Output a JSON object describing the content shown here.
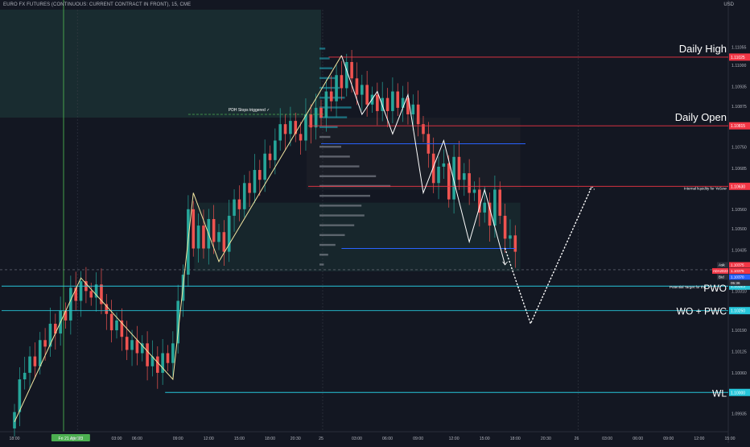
{
  "header": {
    "symbol_title": "EURO FX FUTURES (CONTINUOUS: CURRENT CONTRACT IN FRONT), 15, CME",
    "currency": "USD"
  },
  "chart_data": {
    "type": "candlestick",
    "ylim": [
      1.0988,
      1.1117
    ],
    "price_ticks": [
      {
        "value": 1.11055,
        "label": "1.11055"
      },
      {
        "value": 1.11,
        "label": "1.11000"
      },
      {
        "value": 1.10935,
        "label": "1.10935"
      },
      {
        "value": 1.10875,
        "label": "1.10875"
      },
      {
        "value": 1.10815,
        "label": "1.10815"
      },
      {
        "value": 1.1075,
        "label": "1.10750"
      },
      {
        "value": 1.10685,
        "label": "1.10685"
      },
      {
        "value": 1.1063,
        "label": "1.10630"
      },
      {
        "value": 1.1056,
        "label": "1.10560"
      },
      {
        "value": 1.105,
        "label": "1.10500"
      },
      {
        "value": 1.10435,
        "label": "1.10435"
      },
      {
        "value": 1.10375,
        "label": "1.10375"
      },
      {
        "value": 1.1031,
        "label": "1.10310"
      },
      {
        "value": 1.1025,
        "label": "1.10250"
      },
      {
        "value": 1.1019,
        "label": "1.10190"
      },
      {
        "value": 1.10125,
        "label": "1.10125"
      },
      {
        "value": 1.1006,
        "label": "1.10060"
      },
      {
        "value": 1.1,
        "label": "1.10000"
      },
      {
        "value": 1.09935,
        "label": "1.09935"
      }
    ],
    "time_ticks": [
      {
        "i": 0,
        "label": "18:00"
      },
      {
        "i": 11,
        "label": "Fri 21 Apr '23"
      },
      {
        "i": 12,
        "label": "22:00"
      },
      {
        "i": 20,
        "label": "03:00"
      },
      {
        "i": 24,
        "label": "06:00"
      },
      {
        "i": 32,
        "label": "09:00"
      },
      {
        "i": 38,
        "label": "12:00"
      },
      {
        "i": 44,
        "label": "15:00"
      },
      {
        "i": 50,
        "label": "18:00"
      },
      {
        "i": 55,
        "label": "20:30"
      },
      {
        "i": 60,
        "label": "25"
      },
      {
        "i": 67,
        "label": "03:00"
      },
      {
        "i": 73,
        "label": "06:00"
      },
      {
        "i": 79,
        "label": "09:00"
      },
      {
        "i": 86,
        "label": "12:00"
      },
      {
        "i": 92,
        "label": "15:00"
      },
      {
        "i": 98,
        "label": "18:00"
      },
      {
        "i": 104,
        "label": "20:30"
      },
      {
        "i": 110,
        "label": "26"
      },
      {
        "i": 116,
        "label": "03:00"
      },
      {
        "i": 122,
        "label": "06:00"
      },
      {
        "i": 128,
        "label": "09:00"
      },
      {
        "i": 134,
        "label": "12:00"
      },
      {
        "i": 140,
        "label": "15:00"
      }
    ],
    "candles_close": [
      1.0994,
      1.1004,
      1.1006,
      1.1011,
      1.1008,
      1.1016,
      1.1014,
      1.1021,
      1.1018,
      1.1025,
      1.1022,
      1.1032,
      1.1028,
      1.1034,
      1.1031,
      1.1029,
      1.1033,
      1.1027,
      1.1024,
      1.1019,
      1.1022,
      1.1017,
      1.1013,
      1.1016,
      1.1012,
      1.1015,
      1.1008,
      1.1011,
      1.1006,
      1.1012,
      1.1009,
      1.1015,
      1.1028,
      1.1036,
      1.1056,
      1.1044,
      1.1051,
      1.1044,
      1.1053,
      1.1046,
      1.1049,
      1.1043,
      1.1054,
      1.1059,
      1.1056,
      1.1064,
      1.1061,
      1.1068,
      1.1065,
      1.1073,
      1.1071,
      1.1077,
      1.1082,
      1.1079,
      1.1083,
      1.1079,
      1.1077,
      1.1085,
      1.1081,
      1.1087,
      1.1084,
      1.1092,
      1.1089,
      1.1097,
      1.1093,
      1.1101,
      1.1096,
      1.1091,
      1.1094,
      1.1088,
      1.1091,
      1.1086,
      1.109,
      1.1086,
      1.1092,
      1.1087,
      1.109,
      1.1085,
      1.1088,
      1.1082,
      1.1079,
      1.1073,
      1.1064,
      1.1069,
      1.107,
      1.1059,
      1.1072,
      1.1065,
      1.1067,
      1.1061,
      1.1062,
      1.1055,
      1.1058,
      1.1051,
      1.1062,
      1.1054,
      1.1047,
      1.1048,
      1.1043
    ],
    "candles_open_first": 1.0989,
    "daily_boxes": [
      {
        "from_i": 0,
        "to_i": 60,
        "high": 1.1117,
        "low": 1.1084
      },
      {
        "from_i": 60,
        "to_i": 99,
        "high": 1.1084,
        "low": 1.1062
      },
      {
        "from_i": 38,
        "to_i": 99,
        "high": 1.1058,
        "low": 1.1037
      }
    ],
    "volume_profile": {
      "anchor_i": 60,
      "rows": [
        {
          "price": 1.1105,
          "width": 8
        },
        {
          "price": 1.1102,
          "width": 14
        },
        {
          "price": 1.1099,
          "width": 18
        },
        {
          "price": 1.1096,
          "width": 22
        },
        {
          "price": 1.1093,
          "width": 28
        },
        {
          "price": 1.109,
          "width": 35
        },
        {
          "price": 1.1087,
          "width": 44
        },
        {
          "price": 1.1084,
          "width": 38
        },
        {
          "price": 1.1081,
          "width": 25
        },
        {
          "price": 1.1078,
          "width": 15
        },
        {
          "price": 1.1075,
          "width": 30
        },
        {
          "price": 1.1072,
          "width": 42
        },
        {
          "price": 1.1069,
          "width": 55
        },
        {
          "price": 1.1066,
          "width": 78
        },
        {
          "price": 1.1063,
          "width": 98
        },
        {
          "price": 1.106,
          "width": 70
        },
        {
          "price": 1.1057,
          "width": 58
        },
        {
          "price": 1.1054,
          "width": 62
        },
        {
          "price": 1.1051,
          "width": 48
        },
        {
          "price": 1.1048,
          "width": 35
        },
        {
          "price": 1.1045,
          "width": 22
        },
        {
          "price": 1.1042,
          "width": 12
        },
        {
          "price": 1.1039,
          "width": 6
        }
      ]
    },
    "levels": [
      {
        "name": "Daily High",
        "price": 1.11025,
        "from_i": 64,
        "color": "#f23645",
        "tag": "1.11025",
        "text_label": "Daily High"
      },
      {
        "name": "Daily Open",
        "price": 1.10815,
        "from_i": 60,
        "color": "#f23645",
        "tag": "1.10815",
        "text_label": "Daily Open"
      },
      {
        "name": "Internal liquidity",
        "price": 1.1063,
        "from_i": 60,
        "color": "#f23645",
        "tag": "1.10630",
        "text_label": "Internal liquidity for YeSow"
      },
      {
        "name": "PWO",
        "price": 1.10325,
        "from_i": 0,
        "color": "#26c6da",
        "tag": "1.10325",
        "text_label": "PWO"
      },
      {
        "name": "WO + PWC",
        "price": 1.1025,
        "from_i": 0,
        "color": "#26c6da",
        "tag": "1.10250",
        "text_label": "WO + PWC"
      },
      {
        "name": "WL",
        "price": 1.1,
        "from_i": 32,
        "color": "#26c6da",
        "tag": "1.10000",
        "text_label": "WL"
      }
    ],
    "blue_lines": [
      {
        "price": 1.1076,
        "from_i": 60,
        "to_i": 100
      },
      {
        "price": 1.1044,
        "from_i": 64,
        "to_i": 98
      }
    ],
    "pdh_line": {
      "price": 1.1085,
      "from_i": 34,
      "to_i": 60,
      "label": "PDH Stops triggered ✓"
    },
    "potential_target": {
      "text": "Potential Target for the",
      "price": 1.10325
    },
    "current_price": {
      "price": 1.10375,
      "tags": [
        {
          "kind": "Ask",
          "label": "1.10375",
          "color": "#f23645"
        },
        {
          "kind": "",
          "label": "1.10375",
          "color": "#f23645",
          "sub": "ADA2D23"
        },
        {
          "kind": "Bid",
          "label": "1.10370",
          "color": "#2962ff"
        },
        {
          "kind": "",
          "label": "05:36",
          "color": "#2a2e39"
        }
      ]
    },
    "zigzag_yellow": [
      {
        "i": 0,
        "p": 1.0991
      },
      {
        "i": 13,
        "p": 1.1035
      },
      {
        "i": 31,
        "p": 1.1004
      },
      {
        "i": 35,
        "p": 1.1061
      },
      {
        "i": 40,
        "p": 1.104
      },
      {
        "i": 64,
        "p": 1.1103
      }
    ],
    "zigzag_white": [
      {
        "i": 64,
        "p": 1.1103
      },
      {
        "i": 68,
        "p": 1.1085
      },
      {
        "i": 71,
        "p": 1.1092
      },
      {
        "i": 74,
        "p": 1.1079
      },
      {
        "i": 77,
        "p": 1.1091
      },
      {
        "i": 80,
        "p": 1.1061
      },
      {
        "i": 84,
        "p": 1.1077
      },
      {
        "i": 89,
        "p": 1.1046
      },
      {
        "i": 92,
        "p": 1.1062
      },
      {
        "i": 96,
        "p": 1.1039
      }
    ],
    "projection_dotted": [
      {
        "i": 96,
        "p": 1.1044
      },
      {
        "i": 101,
        "p": 1.1021
      },
      {
        "i": 113,
        "p": 1.1063
      },
      {
        "i": 113,
        "p": 1.1063
      }
    ]
  }
}
